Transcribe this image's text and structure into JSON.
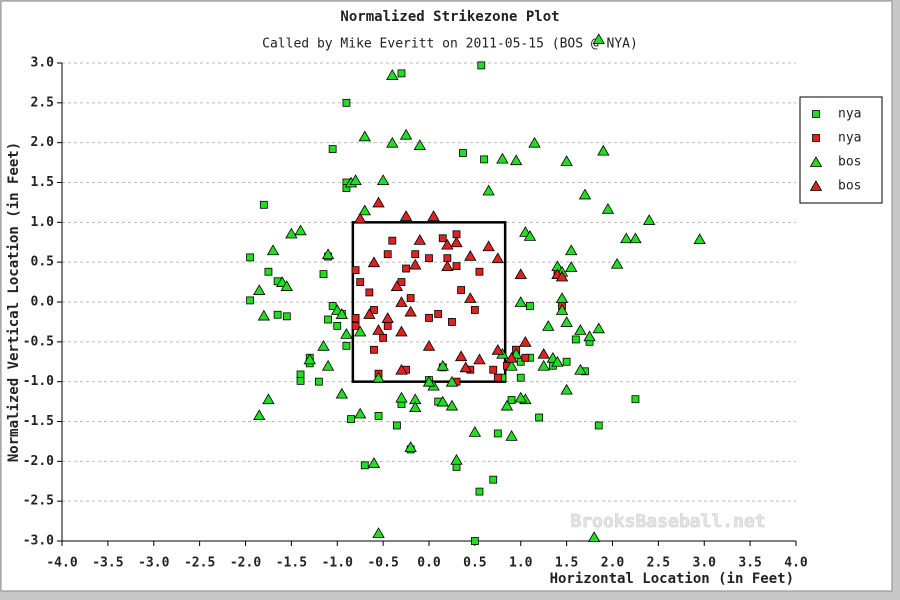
{
  "chart_data": {
    "type": "scatter",
    "title": "Normalized Strikezone Plot",
    "subtitle": "Called by Mike Everitt on 2011-05-15 (BOS @ NYA)",
    "x_label": "Horizontal Location (in Feet)",
    "y_label": "Normalized Vertical Location (in Feet)",
    "watermark": "BrooksBaseball.net",
    "xlim": [
      -4,
      4
    ],
    "ylim": [
      -3,
      3
    ],
    "xticks": [
      {
        "value": -4,
        "label": "-4.0"
      },
      -3.5,
      {
        "value": -3,
        "label": "-3.0"
      },
      -2.5,
      {
        "value": -2,
        "label": "-2.0"
      },
      -1.5,
      {
        "value": -1,
        "label": "-1.0"
      },
      -0.5,
      {
        "value": 0,
        "label": "0.0"
      },
      0.5,
      {
        "value": 1,
        "label": "1.0"
      },
      1.5,
      {
        "value": 2,
        "label": "2.0"
      },
      2.5,
      {
        "value": 3,
        "label": "3.0"
      },
      3.5,
      {
        "value": 4,
        "label": "4.0"
      }
    ],
    "yticks": [
      {
        "value": -3,
        "label": "-3.0"
      },
      -2.5,
      {
        "value": -2,
        "label": "-2.0"
      },
      -1.5,
      {
        "value": -1,
        "label": "-1.0"
      },
      -0.5,
      {
        "value": 0,
        "label": "0.0"
      },
      0.5,
      {
        "value": 1,
        "label": "1.0"
      },
      1.5,
      {
        "value": 2,
        "label": "2.0"
      },
      2.5,
      {
        "value": 3,
        "label": "3.0"
      }
    ],
    "grid": true,
    "legend": "right",
    "strike_zone": {
      "x": [
        -0.83,
        0.83
      ],
      "y": [
        -1,
        1
      ]
    },
    "series": [
      {
        "name": "nya",
        "color": "#22dd22",
        "marker": "square",
        "x": [
          -0.9,
          -1.05,
          -0.9,
          -0.9,
          0.37,
          0.6,
          0.57,
          -0.3,
          -1.8,
          -1.95,
          -1.75,
          -1.95,
          -1.65,
          -1.55,
          -1.65,
          -1.4,
          -1.4,
          -1.3,
          -1.3,
          -1.2,
          -1.15,
          -1.1,
          -1.05,
          -1.0,
          -1.1,
          -0.95,
          -0.9,
          -0.85,
          -0.7,
          -0.55,
          -0.35,
          -0.3,
          -0.2,
          0.0,
          0.1,
          0.3,
          0.55,
          0.7,
          0.75,
          0.9,
          1.0,
          1.0,
          0.95,
          1.1,
          1.2,
          1.5,
          1.6,
          1.7,
          1.75,
          1.85,
          2.25,
          1.35,
          1.1,
          0.8,
          0.5
        ],
        "values": [
          2.5,
          1.92,
          1.5,
          1.43,
          1.87,
          1.79,
          2.97,
          2.87,
          1.22,
          0.56,
          0.38,
          0.02,
          0.26,
          -0.18,
          -0.16,
          -0.91,
          -0.99,
          -0.77,
          -0.7,
          -1.0,
          0.35,
          0.57,
          -0.05,
          -0.3,
          -0.22,
          -0.15,
          -0.55,
          -1.47,
          -2.05,
          -1.43,
          -1.55,
          -1.28,
          -1.85,
          -0.98,
          -1.25,
          -2.07,
          -2.38,
          -2.23,
          -1.65,
          -1.23,
          -0.75,
          -0.95,
          -0.6,
          -0.7,
          -1.45,
          -0.75,
          -0.47,
          -0.87,
          -0.5,
          -1.55,
          -1.22,
          -0.8,
          -0.05,
          -0.95,
          -3.0
        ]
      },
      {
        "name": "nya",
        "color": "#dd2222",
        "marker": "square",
        "x": [
          -0.4,
          -0.45,
          -0.25,
          -0.15,
          0.15,
          0.3,
          0.3,
          0.2,
          0.0,
          0.55,
          -0.8,
          -0.75,
          -0.65,
          -0.6,
          -0.8,
          -0.8,
          -0.6,
          -0.45,
          -0.5,
          -0.3,
          -0.2,
          0.0,
          0.1,
          0.25,
          0.35,
          0.5,
          0.45,
          0.3,
          0.7,
          0.85,
          0.95,
          -0.55,
          -0.25,
          0.15,
          0.75,
          1.05,
          1.45,
          1.4
        ],
        "values": [
          0.77,
          0.6,
          0.42,
          0.6,
          0.8,
          0.85,
          0.45,
          0.55,
          0.55,
          0.38,
          0.4,
          0.25,
          0.12,
          -0.1,
          -0.2,
          -0.3,
          -0.6,
          -0.3,
          -0.45,
          0.25,
          0.05,
          -0.2,
          -0.15,
          -0.25,
          0.15,
          -0.1,
          -0.85,
          -1.0,
          -0.85,
          -0.8,
          -0.6,
          -0.9,
          -0.85,
          -0.82,
          -0.95,
          -0.7,
          -0.05,
          0.38
        ]
      },
      {
        "name": "bos",
        "color": "#22dd22",
        "marker": "triangle",
        "x": [
          -0.4,
          1.85,
          -0.7,
          -0.25,
          -0.4,
          -0.1,
          1.15,
          1.9,
          1.5,
          0.95,
          0.8,
          -0.85,
          -0.8,
          -0.5,
          1.7,
          1.95,
          0.65,
          2.4,
          2.15,
          2.25,
          2.95,
          1.05,
          1.1,
          1.55,
          2.05,
          1.4,
          1.55,
          1.45,
          -1.5,
          -1.4,
          -1.7,
          -1.1,
          -1.6,
          -1.55,
          -1.85,
          -1.8,
          -1.0,
          -0.95,
          -0.75,
          -0.9,
          -1.15,
          -1.3,
          -1.1,
          -0.95,
          -1.85,
          -1.75,
          -0.75,
          -0.55,
          -0.3,
          -0.15,
          -0.15,
          0.15,
          0.25,
          0.05,
          0.25,
          0.0,
          0.15,
          0.5,
          0.9,
          1.05,
          1.25,
          1.35,
          1.4,
          1.3,
          1.5,
          1.65,
          1.85,
          1.75,
          1.65,
          1.5,
          0.8,
          0.9,
          0.95,
          0.85,
          1.0,
          -0.2,
          0.3,
          -0.6,
          -0.55,
          1.8,
          1.45,
          1.45,
          1.0,
          -0.7
        ],
        "values": [
          2.85,
          3.3,
          2.08,
          2.1,
          2.0,
          1.97,
          2.0,
          1.9,
          1.77,
          1.78,
          1.8,
          1.5,
          1.53,
          1.53,
          1.35,
          1.17,
          1.4,
          1.03,
          0.8,
          0.8,
          0.79,
          0.88,
          0.83,
          0.65,
          0.48,
          0.45,
          0.44,
          0.38,
          0.86,
          0.9,
          0.65,
          0.6,
          0.25,
          0.2,
          0.15,
          -0.17,
          -0.1,
          -0.15,
          -0.37,
          -0.4,
          -0.55,
          -0.72,
          -0.8,
          -1.15,
          -1.42,
          -1.22,
          -1.4,
          -0.95,
          -1.2,
          -1.22,
          -1.32,
          -1.25,
          -1.3,
          -1.05,
          -1.0,
          -1.0,
          -0.8,
          -1.63,
          -1.68,
          -1.22,
          -0.8,
          -0.7,
          -0.75,
          -0.3,
          -0.25,
          -0.35,
          -0.33,
          -0.43,
          -0.85,
          -1.1,
          -0.65,
          -0.8,
          -0.65,
          -1.3,
          -1.2,
          -1.82,
          -1.98,
          -2.02,
          -2.9,
          -2.95,
          0.05,
          -0.1,
          0.0,
          1.15
        ]
      },
      {
        "name": "bos",
        "color": "#dd2222",
        "marker": "triangle",
        "x": [
          -0.55,
          -0.75,
          -0.25,
          0.05,
          0.3,
          0.2,
          -0.1,
          0.65,
          0.2,
          0.45,
          -0.15,
          -0.6,
          -0.35,
          0.45,
          -0.3,
          -0.65,
          -0.45,
          -0.2,
          -0.55,
          -0.3,
          0.0,
          0.35,
          0.55,
          -0.3,
          0.75,
          1.25,
          1.05,
          1.0,
          1.4,
          1.45,
          0.9,
          0.75,
          0.4
        ],
        "values": [
          1.25,
          1.05,
          1.08,
          1.08,
          0.75,
          0.72,
          0.78,
          0.7,
          0.45,
          0.58,
          0.47,
          0.5,
          0.2,
          0.05,
          0.0,
          -0.15,
          -0.2,
          -0.12,
          -0.35,
          -0.37,
          -0.55,
          -0.68,
          -0.72,
          -0.85,
          -0.6,
          -0.65,
          -0.5,
          0.35,
          0.35,
          0.32,
          -0.7,
          0.55,
          -0.82
        ]
      }
    ]
  }
}
